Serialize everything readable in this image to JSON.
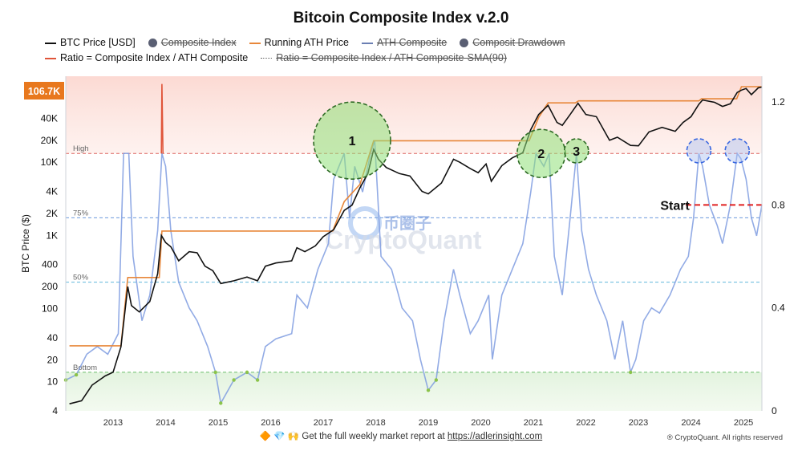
{
  "chart_data": {
    "type": "line",
    "title": "Bitcoin Composite Index v.2.0",
    "ylabel_left": "BTC Price ($)",
    "y_scale_left": "log",
    "ylim_left": [
      4,
      150000
    ],
    "ylim_right": [
      0,
      1.3
    ],
    "xlim": [
      2012.1,
      2025.35
    ],
    "yticks_left": [
      {
        "value": 4,
        "label": "4"
      },
      {
        "value": 10,
        "label": "10"
      },
      {
        "value": 20,
        "label": "20"
      },
      {
        "value": 40,
        "label": "40"
      },
      {
        "value": 100,
        "label": "100"
      },
      {
        "value": 200,
        "label": "200"
      },
      {
        "value": 400,
        "label": "400"
      },
      {
        "value": 1000,
        "label": "1K"
      },
      {
        "value": 2000,
        "label": "2K"
      },
      {
        "value": 4000,
        "label": "4K"
      },
      {
        "value": 10000,
        "label": "10K"
      },
      {
        "value": 20000,
        "label": "20K"
      },
      {
        "value": 40000,
        "label": "40K"
      }
    ],
    "yticks_right": [
      {
        "value": 0,
        "label": "0"
      },
      {
        "value": 0.4,
        "label": "0.4"
      },
      {
        "value": 0.8,
        "label": "0.8"
      },
      {
        "value": 1.2,
        "label": "1.2"
      }
    ],
    "xticks": [
      "2013",
      "2014",
      "2015",
      "2016",
      "2017",
      "2018",
      "2019",
      "2020",
      "2021",
      "2022",
      "2023",
      "2024",
      "2025"
    ],
    "current_price_label": "106.7K",
    "current_price": 106700,
    "zones": {
      "high": {
        "label": "High",
        "ratio": 1.0
      },
      "p75": {
        "label": "75%",
        "ratio": 0.75
      },
      "p50": {
        "label": "50%",
        "ratio": 0.5
      },
      "bottom": {
        "label": "Bottom",
        "ratio": 0.15
      }
    },
    "legend": [
      {
        "label": "BTC Price [USD]",
        "color": "#111111",
        "shape": "line",
        "struck": false
      },
      {
        "label": "Composite Index",
        "color": "#5a5f73",
        "shape": "dot",
        "struck": true
      },
      {
        "label": "Running ATH Price",
        "color": "#e8873a",
        "shape": "line",
        "struck": false
      },
      {
        "label": "ATH Composite",
        "color": "#6b7fb3",
        "shape": "line",
        "struck": true
      },
      {
        "label": "Composit Drawdown",
        "color": "#5a5f73",
        "shape": "dot",
        "struck": true
      },
      {
        "label": "Ratio = Composite Index / ATH Composite",
        "color": "#e0553a",
        "shape": "line",
        "struck": false
      },
      {
        "label": "Ratio = Composite Index / ATH Composite-SMA(90)",
        "color": "#666666",
        "shape": "dotted",
        "struck": true
      }
    ],
    "series": [
      {
        "name": "BTC Price [USD]",
        "axis": "left",
        "color": "#111111",
        "points": [
          [
            2012.17,
            5
          ],
          [
            2012.4,
            5.5
          ],
          [
            2012.6,
            9
          ],
          [
            2012.85,
            12
          ],
          [
            2013.0,
            13.5
          ],
          [
            2013.15,
            30
          ],
          [
            2013.28,
            200
          ],
          [
            2013.35,
            110
          ],
          [
            2013.5,
            90
          ],
          [
            2013.7,
            125
          ],
          [
            2013.85,
            300
          ],
          [
            2013.92,
            1000
          ],
          [
            2014.0,
            800
          ],
          [
            2014.1,
            700
          ],
          [
            2014.25,
            450
          ],
          [
            2014.45,
            600
          ],
          [
            2014.6,
            580
          ],
          [
            2014.75,
            380
          ],
          [
            2014.9,
            330
          ],
          [
            2015.05,
            220
          ],
          [
            2015.3,
            240
          ],
          [
            2015.55,
            270
          ],
          [
            2015.75,
            240
          ],
          [
            2015.9,
            380
          ],
          [
            2016.1,
            420
          ],
          [
            2016.4,
            450
          ],
          [
            2016.5,
            680
          ],
          [
            2016.65,
            600
          ],
          [
            2016.85,
            720
          ],
          [
            2017.0,
            960
          ],
          [
            2017.2,
            1200
          ],
          [
            2017.4,
            2200
          ],
          [
            2017.55,
            2600
          ],
          [
            2017.7,
            4500
          ],
          [
            2017.85,
            7000
          ],
          [
            2017.96,
            15000
          ],
          [
            2018.05,
            11000
          ],
          [
            2018.2,
            8500
          ],
          [
            2018.45,
            7000
          ],
          [
            2018.65,
            6500
          ],
          [
            2018.88,
            4000
          ],
          [
            2019.0,
            3700
          ],
          [
            2019.25,
            5200
          ],
          [
            2019.48,
            11000
          ],
          [
            2019.6,
            10000
          ],
          [
            2019.8,
            8200
          ],
          [
            2019.95,
            7200
          ],
          [
            2020.1,
            9500
          ],
          [
            2020.2,
            5500
          ],
          [
            2020.4,
            9000
          ],
          [
            2020.6,
            11500
          ],
          [
            2020.8,
            13500
          ],
          [
            2020.95,
            28000
          ],
          [
            2021.1,
            45000
          ],
          [
            2021.28,
            60000
          ],
          [
            2021.45,
            35000
          ],
          [
            2021.55,
            32000
          ],
          [
            2021.7,
            45000
          ],
          [
            2021.85,
            64000
          ],
          [
            2022.0,
            45000
          ],
          [
            2022.2,
            42000
          ],
          [
            2022.45,
            20000
          ],
          [
            2022.6,
            22000
          ],
          [
            2022.85,
            17000
          ],
          [
            2023.0,
            16800
          ],
          [
            2023.2,
            26000
          ],
          [
            2023.45,
            30000
          ],
          [
            2023.7,
            26500
          ],
          [
            2023.85,
            35000
          ],
          [
            2024.0,
            42000
          ],
          [
            2024.15,
            62000
          ],
          [
            2024.22,
            71000
          ],
          [
            2024.45,
            66000
          ],
          [
            2024.6,
            58000
          ],
          [
            2024.75,
            63000
          ],
          [
            2024.88,
            90000
          ],
          [
            2024.96,
            97000
          ],
          [
            2025.05,
            102000
          ],
          [
            2025.15,
            84000
          ],
          [
            2025.28,
            104000
          ],
          [
            2025.35,
            106700
          ]
        ]
      },
      {
        "name": "Running ATH Price",
        "axis": "left",
        "color": "#e8873a",
        "points": [
          [
            2012.17,
            31
          ],
          [
            2013.15,
            31
          ],
          [
            2013.28,
            266
          ],
          [
            2013.88,
            266
          ],
          [
            2013.93,
            1150
          ],
          [
            2017.18,
            1150
          ],
          [
            2017.4,
            2900
          ],
          [
            2017.7,
            5000
          ],
          [
            2017.96,
            19700
          ],
          [
            2020.92,
            19700
          ],
          [
            2021.1,
            41000
          ],
          [
            2021.28,
            64800
          ],
          [
            2021.8,
            64800
          ],
          [
            2021.86,
            69000
          ],
          [
            2024.15,
            69000
          ],
          [
            2024.2,
            73700
          ],
          [
            2024.87,
            73700
          ],
          [
            2024.96,
            108000
          ],
          [
            2025.35,
            108000
          ]
        ]
      },
      {
        "name": "Ratio = Composite Index / ATH Composite",
        "axis": "right",
        "color": "#7f9ce0",
        "points": [
          [
            2012.1,
            0.12
          ],
          [
            2012.3,
            0.14
          ],
          [
            2012.5,
            0.22
          ],
          [
            2012.7,
            0.25
          ],
          [
            2012.9,
            0.22
          ],
          [
            2013.1,
            0.3
          ],
          [
            2013.2,
            1.0
          ],
          [
            2013.3,
            1.0
          ],
          [
            2013.38,
            0.6
          ],
          [
            2013.55,
            0.35
          ],
          [
            2013.7,
            0.45
          ],
          [
            2013.85,
            0.7
          ],
          [
            2013.93,
            1.0
          ],
          [
            2014.0,
            0.95
          ],
          [
            2014.1,
            0.7
          ],
          [
            2014.25,
            0.5
          ],
          [
            2014.45,
            0.4
          ],
          [
            2014.6,
            0.35
          ],
          [
            2014.8,
            0.25
          ],
          [
            2014.95,
            0.15
          ],
          [
            2015.05,
            0.03
          ],
          [
            2015.3,
            0.12
          ],
          [
            2015.55,
            0.15
          ],
          [
            2015.75,
            0.12
          ],
          [
            2015.9,
            0.25
          ],
          [
            2016.1,
            0.28
          ],
          [
            2016.4,
            0.3
          ],
          [
            2016.5,
            0.45
          ],
          [
            2016.7,
            0.4
          ],
          [
            2016.9,
            0.55
          ],
          [
            2017.1,
            0.65
          ],
          [
            2017.2,
            0.9
          ],
          [
            2017.4,
            1.0
          ],
          [
            2017.5,
            0.75
          ],
          [
            2017.6,
            0.95
          ],
          [
            2017.75,
            0.85
          ],
          [
            2017.9,
            1.0
          ],
          [
            2017.98,
            1.05
          ],
          [
            2018.1,
            0.6
          ],
          [
            2018.3,
            0.55
          ],
          [
            2018.5,
            0.4
          ],
          [
            2018.7,
            0.35
          ],
          [
            2018.85,
            0.2
          ],
          [
            2019.0,
            0.08
          ],
          [
            2019.15,
            0.12
          ],
          [
            2019.3,
            0.35
          ],
          [
            2019.48,
            0.55
          ],
          [
            2019.6,
            0.45
          ],
          [
            2019.8,
            0.3
          ],
          [
            2019.95,
            0.35
          ],
          [
            2020.15,
            0.45
          ],
          [
            2020.22,
            0.2
          ],
          [
            2020.4,
            0.45
          ],
          [
            2020.6,
            0.55
          ],
          [
            2020.8,
            0.65
          ],
          [
            2020.95,
            0.85
          ],
          [
            2021.05,
            1.0
          ],
          [
            2021.2,
            0.95
          ],
          [
            2021.3,
            1.0
          ],
          [
            2021.4,
            0.6
          ],
          [
            2021.55,
            0.45
          ],
          [
            2021.7,
            0.75
          ],
          [
            2021.82,
            1.0
          ],
          [
            2021.92,
            0.7
          ],
          [
            2022.05,
            0.55
          ],
          [
            2022.2,
            0.45
          ],
          [
            2022.4,
            0.35
          ],
          [
            2022.55,
            0.2
          ],
          [
            2022.7,
            0.35
          ],
          [
            2022.85,
            0.15
          ],
          [
            2022.95,
            0.2
          ],
          [
            2023.1,
            0.35
          ],
          [
            2023.25,
            0.4
          ],
          [
            2023.4,
            0.38
          ],
          [
            2023.6,
            0.45
          ],
          [
            2023.8,
            0.55
          ],
          [
            2023.95,
            0.6
          ],
          [
            2024.05,
            0.75
          ],
          [
            2024.15,
            1.0
          ],
          [
            2024.22,
            0.95
          ],
          [
            2024.35,
            0.8
          ],
          [
            2024.5,
            0.72
          ],
          [
            2024.6,
            0.65
          ],
          [
            2024.75,
            0.8
          ],
          [
            2024.88,
            1.0
          ],
          [
            2024.95,
            0.98
          ],
          [
            2025.05,
            0.9
          ],
          [
            2025.15,
            0.75
          ],
          [
            2025.25,
            0.68
          ],
          [
            2025.35,
            0.8
          ]
        ]
      },
      {
        "name": "Ratio highlight (top)",
        "axis": "right",
        "color": "#e0553a",
        "points": [
          [
            2013.92,
            1.0
          ],
          [
            2013.93,
            1.27
          ],
          [
            2013.95,
            1.0
          ]
        ]
      }
    ],
    "annotations": [
      {
        "label": "1",
        "x": 2017.55,
        "ratio": 1.05,
        "radius": 48,
        "color": "#7fd66b",
        "style": "dashed"
      },
      {
        "label": "2",
        "x": 2021.15,
        "ratio": 1.0,
        "radius": 30,
        "color": "#7fd66b",
        "style": "dashed"
      },
      {
        "label": "3",
        "x": 2021.82,
        "ratio": 1.01,
        "radius": 15,
        "color": "#7fd66b",
        "style": "dashed"
      },
      {
        "label": "",
        "x": 2024.15,
        "ratio": 1.01,
        "radius": 15,
        "color": "#3a68e0",
        "style": "dashed"
      },
      {
        "label": "",
        "x": 2024.88,
        "ratio": 1.01,
        "radius": 15,
        "color": "#3a68e0",
        "style": "dashed"
      },
      {
        "label": "Start",
        "x": 2023.6,
        "ratio": 0.8,
        "color": "#111111"
      }
    ]
  },
  "watermark": {
    "text": "CryptoQuant",
    "cn_text": "币圈子"
  },
  "footer": {
    "text": "Get the full weekly market report at",
    "link": "https://adlerinsight.com",
    "icons": "🔶 💎 🙌"
  },
  "copyright": "® CryptoQuant. All rights reserved"
}
